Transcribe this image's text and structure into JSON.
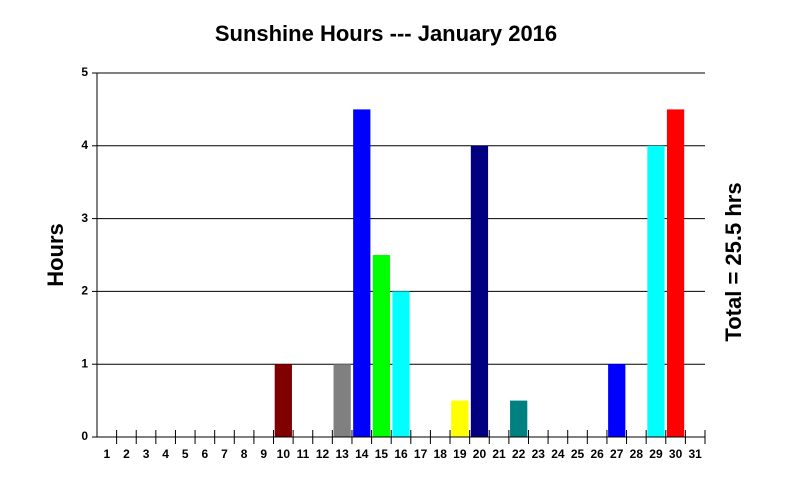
{
  "chart_data": {
    "type": "bar",
    "title": "Sunshine Hours --- January 2016",
    "y_label": "Hours",
    "annotation": "Total = 25.5 hrs",
    "categories": [
      "1",
      "2",
      "3",
      "4",
      "5",
      "6",
      "7",
      "8",
      "9",
      "10",
      "11",
      "12",
      "13",
      "14",
      "15",
      "16",
      "17",
      "18",
      "19",
      "20",
      "21",
      "22",
      "23",
      "24",
      "25",
      "26",
      "27",
      "28",
      "29",
      "30",
      "31"
    ],
    "values": [
      0,
      0,
      0,
      0,
      0,
      0,
      0,
      0,
      0,
      1,
      0,
      0,
      1,
      4.5,
      2.5,
      2,
      0,
      0,
      0.5,
      4,
      0,
      0.5,
      0,
      0,
      0,
      0,
      1,
      0,
      4,
      4.5,
      0
    ],
    "colors": [
      null,
      null,
      null,
      null,
      null,
      null,
      null,
      null,
      null,
      "#800000",
      null,
      null,
      "#808080",
      "#0000ff",
      "#00ff00",
      "#00ffff",
      null,
      null,
      "#ffff00",
      "#000080",
      null,
      "#008080",
      null,
      null,
      null,
      null,
      "#0000ff",
      null,
      "#00ffff",
      "#ff0000",
      null
    ],
    "ylim": [
      0,
      5
    ],
    "yticks": [
      0,
      1,
      2,
      3,
      4,
      5
    ],
    "grid": true
  }
}
